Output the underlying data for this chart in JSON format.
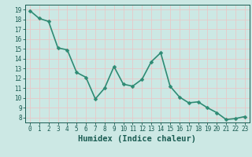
{
  "x": [
    0,
    1,
    2,
    3,
    4,
    5,
    6,
    7,
    8,
    9,
    10,
    11,
    12,
    13,
    14,
    15,
    16,
    17,
    18,
    19,
    20,
    21,
    22,
    23
  ],
  "y": [
    18.9,
    18.1,
    17.8,
    15.1,
    14.9,
    12.6,
    12.1,
    9.9,
    11.0,
    13.2,
    11.4,
    11.2,
    11.9,
    13.7,
    14.6,
    11.2,
    10.1,
    9.5,
    9.6,
    9.0,
    8.5,
    7.8,
    7.9,
    8.1
  ],
  "line_color": "#2e8b74",
  "marker_color": "#2e8b74",
  "bg_color": "#cce8e4",
  "grid_color": "#e8c8c8",
  "xlabel": "Humidex (Indice chaleur)",
  "xlim": [
    -0.5,
    23.5
  ],
  "ylim": [
    7.5,
    19.5
  ],
  "yticks": [
    8,
    9,
    10,
    11,
    12,
    13,
    14,
    15,
    16,
    17,
    18,
    19
  ],
  "xticks": [
    0,
    1,
    2,
    3,
    4,
    5,
    6,
    7,
    8,
    9,
    10,
    11,
    12,
    13,
    14,
    15,
    16,
    17,
    18,
    19,
    20,
    21,
    22,
    23
  ],
  "tick_label_color": "#1a5c52",
  "xlabel_fontsize": 7.5,
  "tick_fontsize": 5.5,
  "linewidth": 1.2,
  "markersize": 2.5
}
